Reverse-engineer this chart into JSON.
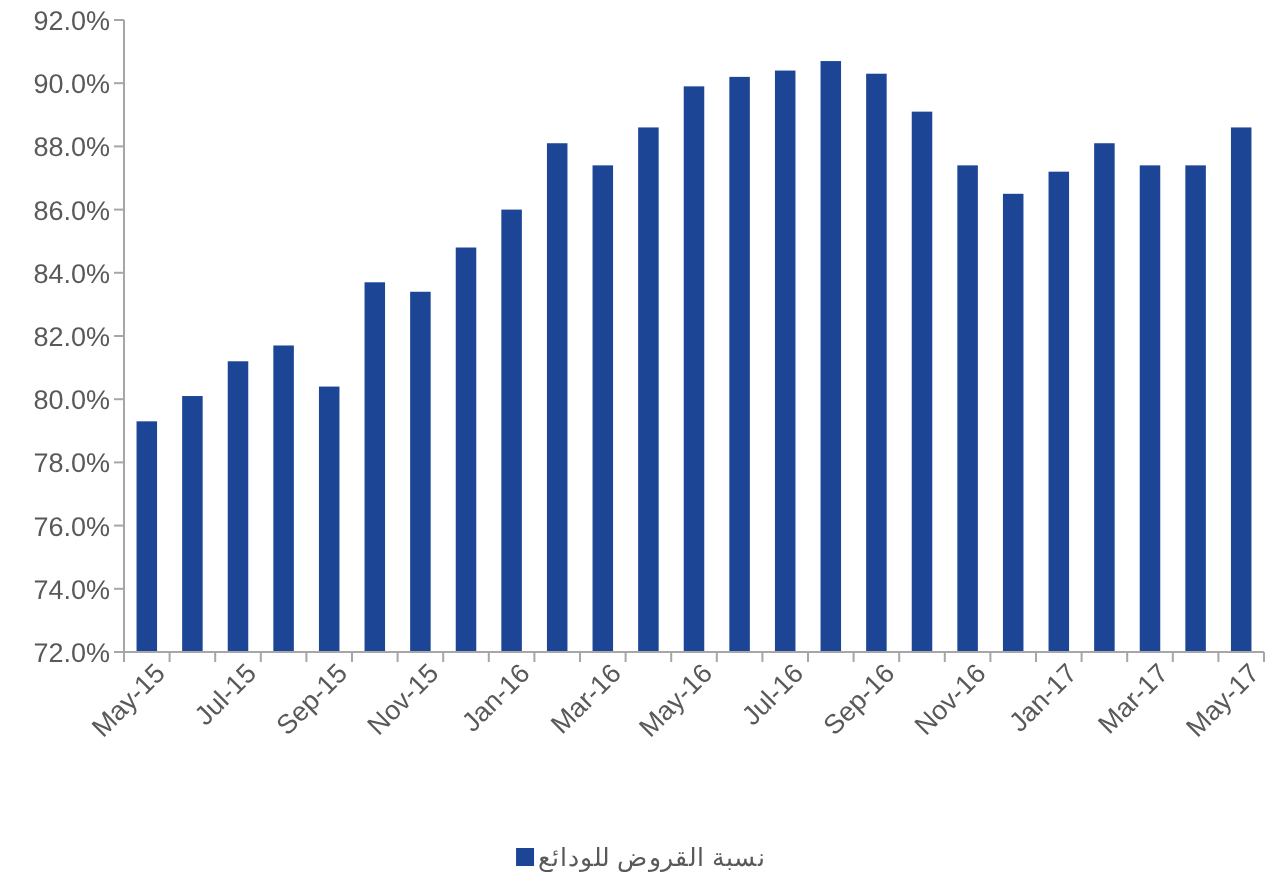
{
  "chart_data": {
    "type": "bar",
    "categories": [
      "May-15",
      null,
      "Jul-15",
      null,
      "Sep-15",
      null,
      "Nov-15",
      null,
      "Jan-16",
      null,
      "Mar-16",
      null,
      "May-16",
      null,
      "Jul-16",
      null,
      "Sep-16",
      null,
      "Nov-16",
      null,
      "Jan-17",
      null,
      "Mar-17",
      null,
      "May-17"
    ],
    "series": [
      {
        "name": "نسبة القروض للودائع",
        "color": "#1c4596",
        "values": [
          79.3,
          80.1,
          81.2,
          81.7,
          80.4,
          83.7,
          83.4,
          84.8,
          86.0,
          88.1,
          87.4,
          88.6,
          89.9,
          90.2,
          90.4,
          90.7,
          90.3,
          89.1,
          87.4,
          86.5,
          87.2,
          88.1,
          87.4,
          87.4,
          88.6
        ]
      }
    ],
    "ylim": [
      72,
      92
    ],
    "yticks": [
      {
        "value": 72,
        "label": "72.0%"
      },
      {
        "value": 74,
        "label": "74.0%"
      },
      {
        "value": 76,
        "label": "76.0%"
      },
      {
        "value": 78,
        "label": "78.0%"
      },
      {
        "value": 80,
        "label": "80.0%"
      },
      {
        "value": 82,
        "label": "82.0%"
      },
      {
        "value": 84,
        "label": "84.0%"
      },
      {
        "value": 86,
        "label": "86.0%"
      },
      {
        "value": 88,
        "label": "88.0%"
      },
      {
        "value": 90,
        "label": "90.0%"
      },
      {
        "value": 92,
        "label": "92.0%"
      }
    ],
    "legend": "bottom"
  }
}
